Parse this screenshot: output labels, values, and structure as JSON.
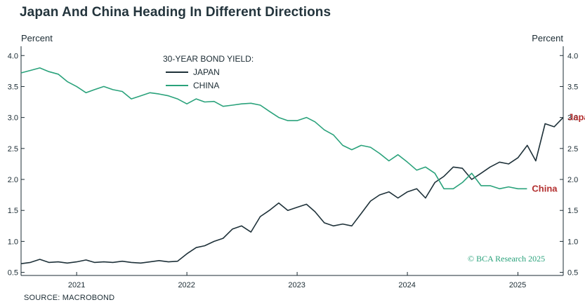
{
  "header": {
    "title": "Japan And China Heading In Different Directions"
  },
  "footer": {
    "source": "SOURCE: MACROBOND",
    "credit": "© BCA Research 2025"
  },
  "colors": {
    "japan": "#1e3139",
    "china": "#2aa27b",
    "end_label": "#b32f2f",
    "axis": "#1b2b33"
  },
  "chart_data": {
    "type": "line",
    "title": "Japan And China Heading In Different Directions",
    "ylabel_left": "Percent",
    "ylabel_right": "Percent",
    "legend_title": "30-YEAR BOND YIELD:",
    "legend_position": "top-left",
    "grid": false,
    "ylim": [
      0.45,
      4.15
    ],
    "xlim": [
      "2020-07-01",
      "2025-05-31"
    ],
    "yticks": [
      0.5,
      1.0,
      1.5,
      2.0,
      2.5,
      3.0,
      3.5,
      4.0
    ],
    "ytick_labels": [
      "0.5",
      "1.0",
      "1.5",
      "2.0",
      "2.5",
      "3.0",
      "3.5",
      "4.0"
    ],
    "xtick_labels": [
      "2021",
      "2022",
      "2023",
      "2024",
      "2025"
    ],
    "xtick_positions": [
      "2021-01-01",
      "2022-01-01",
      "2023-01-01",
      "2024-01-01",
      "2025-01-01"
    ],
    "xtick_label_positions": [
      "2021-01-01",
      "2021-12-31",
      "2022-12-31",
      "2023-12-31",
      "2024-12-31"
    ],
    "series": [
      {
        "name": "JAPAN",
        "end_label": "Japan",
        "points": [
          [
            "2020-07-01",
            0.64
          ],
          [
            "2020-08-01",
            0.66
          ],
          [
            "2020-09-01",
            0.71
          ],
          [
            "2020-10-01",
            0.66
          ],
          [
            "2020-11-01",
            0.67
          ],
          [
            "2020-12-01",
            0.65
          ],
          [
            "2021-01-01",
            0.67
          ],
          [
            "2021-02-01",
            0.7
          ],
          [
            "2021-03-01",
            0.66
          ],
          [
            "2021-04-01",
            0.67
          ],
          [
            "2021-05-01",
            0.66
          ],
          [
            "2021-06-01",
            0.68
          ],
          [
            "2021-07-01",
            0.66
          ],
          [
            "2021-08-01",
            0.65
          ],
          [
            "2021-09-01",
            0.67
          ],
          [
            "2021-10-01",
            0.69
          ],
          [
            "2021-11-01",
            0.67
          ],
          [
            "2021-12-01",
            0.68
          ],
          [
            "2022-01-01",
            0.8
          ],
          [
            "2022-02-01",
            0.9
          ],
          [
            "2022-03-01",
            0.93
          ],
          [
            "2022-04-01",
            1.0
          ],
          [
            "2022-05-01",
            1.05
          ],
          [
            "2022-06-01",
            1.2
          ],
          [
            "2022-07-01",
            1.25
          ],
          [
            "2022-08-01",
            1.15
          ],
          [
            "2022-09-01",
            1.4
          ],
          [
            "2022-10-01",
            1.5
          ],
          [
            "2022-11-01",
            1.62
          ],
          [
            "2022-12-01",
            1.5
          ],
          [
            "2023-01-01",
            1.55
          ],
          [
            "2023-02-01",
            1.6
          ],
          [
            "2023-03-01",
            1.48
          ],
          [
            "2023-04-01",
            1.3
          ],
          [
            "2023-05-01",
            1.25
          ],
          [
            "2023-06-01",
            1.28
          ],
          [
            "2023-07-01",
            1.25
          ],
          [
            "2023-08-01",
            1.45
          ],
          [
            "2023-09-01",
            1.65
          ],
          [
            "2023-10-01",
            1.75
          ],
          [
            "2023-11-01",
            1.8
          ],
          [
            "2023-12-01",
            1.7
          ],
          [
            "2024-01-01",
            1.8
          ],
          [
            "2024-02-01",
            1.85
          ],
          [
            "2024-03-01",
            1.7
          ],
          [
            "2024-04-01",
            1.95
          ],
          [
            "2024-05-01",
            2.05
          ],
          [
            "2024-06-01",
            2.2
          ],
          [
            "2024-07-01",
            2.18
          ],
          [
            "2024-08-01",
            2.0
          ],
          [
            "2024-09-01",
            2.1
          ],
          [
            "2024-10-01",
            2.2
          ],
          [
            "2024-11-01",
            2.28
          ],
          [
            "2024-12-01",
            2.25
          ],
          [
            "2025-01-01",
            2.35
          ],
          [
            "2025-02-01",
            2.55
          ],
          [
            "2025-03-01",
            2.3
          ],
          [
            "2025-04-01",
            2.9
          ],
          [
            "2025-05-01",
            2.85
          ],
          [
            "2025-05-31",
            3.0
          ]
        ]
      },
      {
        "name": "CHINA",
        "end_label": "China",
        "points": [
          [
            "2020-07-01",
            3.72
          ],
          [
            "2020-08-01",
            3.76
          ],
          [
            "2020-09-01",
            3.8
          ],
          [
            "2020-10-01",
            3.74
          ],
          [
            "2020-11-01",
            3.7
          ],
          [
            "2020-12-01",
            3.58
          ],
          [
            "2021-01-01",
            3.5
          ],
          [
            "2021-02-01",
            3.4
          ],
          [
            "2021-03-01",
            3.45
          ],
          [
            "2021-04-01",
            3.5
          ],
          [
            "2021-05-01",
            3.45
          ],
          [
            "2021-06-01",
            3.42
          ],
          [
            "2021-07-01",
            3.3
          ],
          [
            "2021-08-01",
            3.35
          ],
          [
            "2021-09-01",
            3.4
          ],
          [
            "2021-10-01",
            3.38
          ],
          [
            "2021-11-01",
            3.35
          ],
          [
            "2021-12-01",
            3.3
          ],
          [
            "2022-01-01",
            3.22
          ],
          [
            "2022-02-01",
            3.3
          ],
          [
            "2022-03-01",
            3.25
          ],
          [
            "2022-04-01",
            3.26
          ],
          [
            "2022-05-01",
            3.18
          ],
          [
            "2022-06-01",
            3.2
          ],
          [
            "2022-07-01",
            3.22
          ],
          [
            "2022-08-01",
            3.23
          ],
          [
            "2022-09-01",
            3.2
          ],
          [
            "2022-10-01",
            3.1
          ],
          [
            "2022-11-01",
            3.0
          ],
          [
            "2022-12-01",
            2.95
          ],
          [
            "2023-01-01",
            2.95
          ],
          [
            "2023-02-01",
            3.0
          ],
          [
            "2023-03-01",
            2.93
          ],
          [
            "2023-04-01",
            2.8
          ],
          [
            "2023-05-01",
            2.72
          ],
          [
            "2023-06-01",
            2.55
          ],
          [
            "2023-07-01",
            2.48
          ],
          [
            "2023-08-01",
            2.55
          ],
          [
            "2023-09-01",
            2.52
          ],
          [
            "2023-10-01",
            2.42
          ],
          [
            "2023-11-01",
            2.3
          ],
          [
            "2023-12-01",
            2.4
          ],
          [
            "2024-01-01",
            2.28
          ],
          [
            "2024-02-01",
            2.15
          ],
          [
            "2024-03-01",
            2.2
          ],
          [
            "2024-04-01",
            2.1
          ],
          [
            "2024-05-01",
            1.85
          ],
          [
            "2024-06-01",
            1.85
          ],
          [
            "2024-07-01",
            1.95
          ],
          [
            "2024-08-01",
            2.1
          ],
          [
            "2024-09-01",
            1.9
          ],
          [
            "2024-10-01",
            1.9
          ],
          [
            "2024-11-01",
            1.85
          ],
          [
            "2024-12-01",
            1.88
          ],
          [
            "2025-01-01",
            1.85
          ],
          [
            "2025-01-31",
            1.85
          ]
        ]
      }
    ]
  }
}
